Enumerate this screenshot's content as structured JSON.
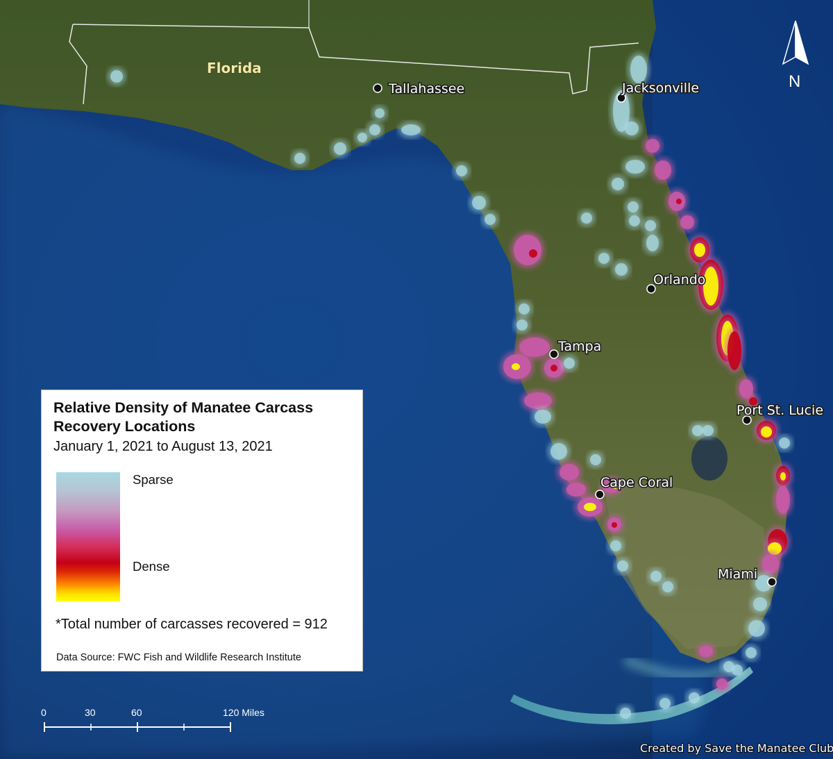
{
  "map": {
    "state_label": "Florida",
    "cities": [
      {
        "name": "Tallahassee",
        "id": "tallahassee"
      },
      {
        "name": "Jacksonville",
        "id": "jacksonville"
      },
      {
        "name": "Orlando",
        "id": "orlando"
      },
      {
        "name": "Tampa",
        "id": "tampa"
      },
      {
        "name": "Port St. Lucie",
        "id": "port-st-lucie"
      },
      {
        "name": "Cape Coral",
        "id": "cape-coral"
      },
      {
        "name": "Miami",
        "id": "miami"
      }
    ],
    "north_arrow": {
      "label": "N",
      "icon": "north-arrow-icon"
    },
    "scale_bar": {
      "ticks": [
        "0",
        "30",
        "60",
        "120 Miles"
      ]
    },
    "credit": "Created by Save the Manatee Club",
    "colors": {
      "ocean": "#123a7a",
      "land": "#4a5d2c",
      "sparse": "#a8d8e2",
      "mid": "#c85aa7",
      "red": "#c40016",
      "dense": "#ffff00"
    }
  },
  "legend": {
    "title": "Relative Density of Manatee Carcass Recovery Locations",
    "subtitle": "January 1, 2021 to August 13, 2021",
    "sparse_label": "Sparse",
    "dense_label": "Dense",
    "total": "*Total number of carcasses recovered = 912",
    "source": "Data Source: FWC Fish and Wildlife Research Institute"
  }
}
